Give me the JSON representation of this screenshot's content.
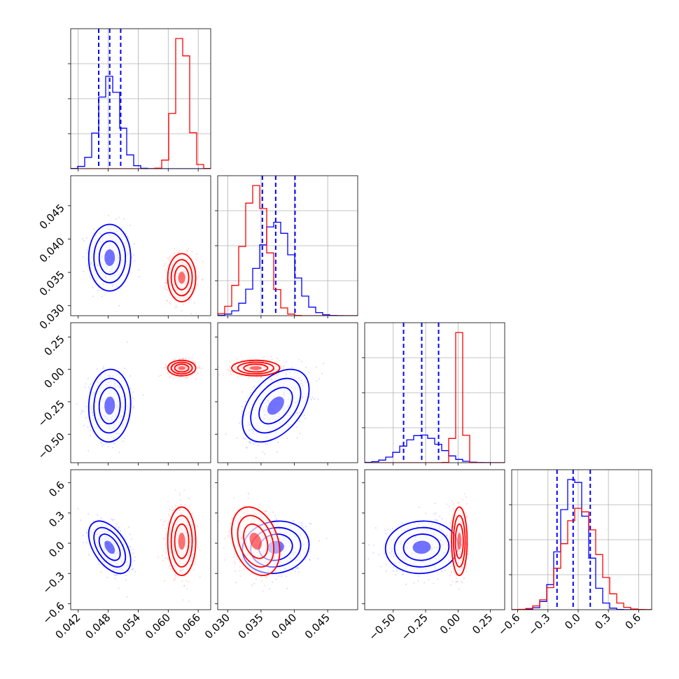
{
  "chart_data": {
    "type": "corner",
    "grid": true,
    "colors": {
      "blue": "#0000ff",
      "red": "#ff0000"
    },
    "series": [
      {
        "color": "blue",
        "means": [
          0.0483,
          0.0372,
          -0.28,
          -0.04
        ],
        "sds": [
          0.0021,
          0.0025,
          0.14,
          0.13
        ],
        "corr": [
          [
            0,
            1,
            0.0
          ],
          [
            0,
            2,
            0.05
          ],
          [
            0,
            3,
            -0.5
          ],
          [
            1,
            2,
            0.45
          ],
          [
            1,
            3,
            0.1
          ],
          [
            2,
            3,
            0.05
          ]
        ],
        "quantiles": [
          [
            0.0461,
            0.0483,
            0.0505
          ],
          [
            0.0352,
            0.0372,
            0.0401
          ],
          [
            -0.42,
            -0.28,
            -0.15
          ],
          [
            -0.21,
            -0.05,
            0.12
          ]
        ]
      },
      {
        "color": "red",
        "means": [
          0.0627,
          0.0342,
          0.01,
          0.02
        ],
        "sds": [
          0.0014,
          0.0018,
          0.03,
          0.17
        ],
        "corr": [
          [
            0,
            1,
            0.0
          ],
          [
            0,
            2,
            0.0
          ],
          [
            0,
            3,
            0.0
          ],
          [
            1,
            2,
            0.0
          ],
          [
            1,
            3,
            -0.3
          ],
          [
            2,
            3,
            0.0
          ]
        ],
        "quantiles": []
      }
    ],
    "ranges": [
      [
        0.0405,
        0.0685
      ],
      [
        0.0285,
        0.0495
      ],
      [
        -0.72,
        0.36
      ],
      [
        -0.66,
        0.73
      ]
    ],
    "ticks": [
      [
        "0.042",
        "0.048",
        "0.054",
        "0.060",
        "0.066"
      ],
      [
        "0.030",
        "0.035",
        "0.040",
        "0.045"
      ],
      [
        "−0.50",
        "−0.25",
        "0.00",
        "0.25"
      ],
      [
        "−0.6",
        "−0.3",
        "0.0",
        "0.3",
        "0.6"
      ]
    ],
    "tick_values": [
      [
        0.042,
        0.048,
        0.054,
        0.06,
        0.066
      ],
      [
        0.03,
        0.035,
        0.04,
        0.045
      ],
      [
        -0.5,
        -0.25,
        0.0,
        0.25
      ],
      [
        -0.6,
        -0.3,
        0.0,
        0.3,
        0.6
      ]
    ]
  }
}
